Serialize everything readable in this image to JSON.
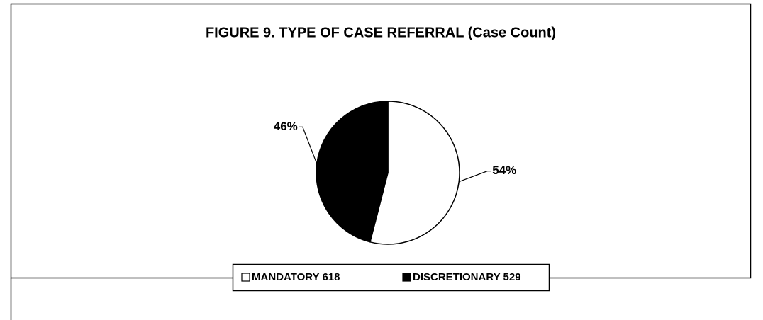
{
  "chart_data": {
    "type": "pie",
    "title": "FIGURE  9. TYPE OF CASE REFERRAL (Case Count)",
    "categories": [
      "MANDATORY 618",
      "DISCRETIONARY 529"
    ],
    "values": [
      54,
      46
    ],
    "value_labels": [
      "54%",
      "46%"
    ],
    "colors": [
      "#ffffff",
      "#000000"
    ],
    "legend": "bottom"
  }
}
